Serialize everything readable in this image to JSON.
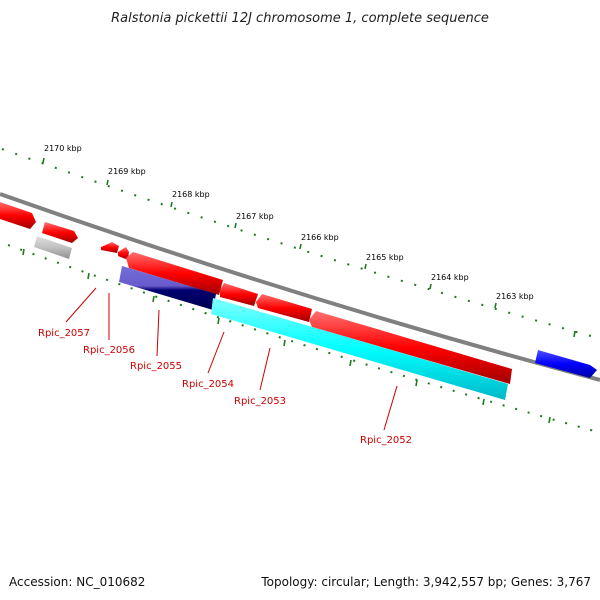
{
  "title": "Ralstonia pickettii 12J chromosome 1, complete sequence",
  "footer": {
    "accession": "Accession: NC_010682",
    "summary": "Topology: circular; Length: 3,942,557 bp; Genes: 3,767"
  },
  "ruler_labels": [
    "2170 kbp",
    "2169 kbp",
    "2168 kbp",
    "2167 kbp",
    "2166 kbp",
    "2165 kbp",
    "2164 kbp",
    "2163 kbp"
  ],
  "gene_labels": [
    "Rpic_2057",
    "Rpic_2056",
    "Rpic_2055",
    "Rpic_2054",
    "Rpic_2053",
    "Rpic_2052"
  ],
  "colors": {
    "backbone": "#808080",
    "ruler_ticks": "#1f7a1f",
    "gene_forward": "#ff0000",
    "gene_cds_cyan": "#00ffff",
    "gene_navy": "#000080",
    "gene_blue": "#0000ff",
    "gene_grey": "#c0c0c0",
    "label_red": "#cc0000"
  }
}
